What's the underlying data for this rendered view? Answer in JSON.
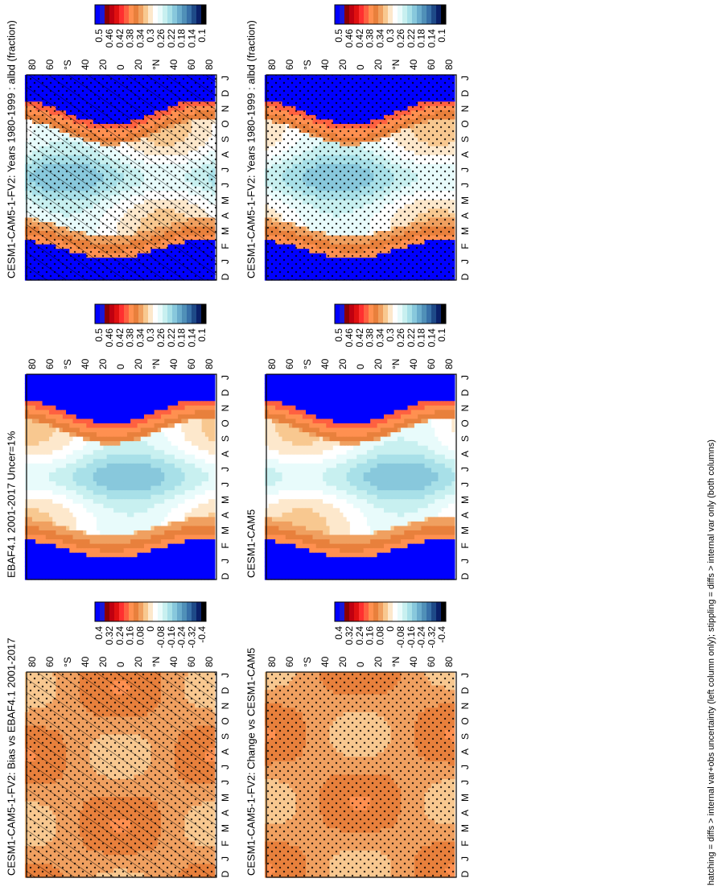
{
  "figure_note": "hatching = diffs > internal var+obs uncertainty (left column only); stippling = diffs > internal var only (both columns)",
  "palettes": {
    "absolute": [
      "#0000ff",
      "#1818d8",
      "#8b0000",
      "#c00010",
      "#e01010",
      "#ff3030",
      "#ff6040",
      "#ff9050",
      "#e8803c",
      "#f0a060",
      "#f8c890",
      "#fde8cc",
      "#ffffff",
      "#e8fbfb",
      "#c8f0f0",
      "#a8e0e8",
      "#88c8dc",
      "#6aaccc",
      "#5090b8",
      "#3870a8",
      "#1e4a88",
      "#0a2068",
      "#000000"
    ],
    "difference": [
      "#0000ff",
      "#1818d8",
      "#8b0000",
      "#c00010",
      "#e01010",
      "#ff3030",
      "#ff6040",
      "#ff9050",
      "#e8803c",
      "#f0a060",
      "#f8c890",
      "#fde8cc",
      "#ffffff",
      "#e8fbfb",
      "#c8f0f0",
      "#a8e0e8",
      "#88c8dc",
      "#6aaccc",
      "#5090b8",
      "#3870a8",
      "#1e4a88",
      "#0a2068",
      "#000000"
    ]
  },
  "panels": [
    {
      "id": "left-top",
      "title": "CESM1-CAM5-1-FV2: Years 1980-1999 : albd (fraction)",
      "kind": "absolute",
      "hatch": true,
      "stipple": true
    },
    {
      "id": "right-top",
      "title": "CESM1-CAM5-1-FV2: Years 1980-1999 : albd (fraction)",
      "kind": "absolute",
      "hatch": false,
      "stipple": true
    },
    {
      "id": "left-mid",
      "title": "EBAF4.1 2001-2017 Uncer=1%",
      "kind": "absolute",
      "hatch": false,
      "stipple": false
    },
    {
      "id": "right-mid",
      "title": "CESM1-CAM5",
      "kind": "absolute",
      "hatch": false,
      "stipple": false
    },
    {
      "id": "left-bot",
      "title": "CESM1-CAM5-1-FV2: Bias vs EBAF4.1 2001-2017",
      "kind": "difference",
      "hatch": true,
      "stipple": true
    },
    {
      "id": "right-bot",
      "title": "CESM1-CAM5-1-FV2: Change vs CESM1-CAM5",
      "kind": "difference",
      "hatch": false,
      "stipple": true
    }
  ],
  "colorbars": {
    "absolute": {
      "labels": [
        "0.5",
        "0.46",
        "0.42",
        "0.38",
        "0.34",
        "0.3",
        "0.26",
        "0.22",
        "0.18",
        "0.14",
        "0.1"
      ]
    },
    "difference": {
      "labels": [
        "0.4",
        "0.32",
        "0.24",
        "0.16",
        "0.08",
        "0",
        "-0.08",
        "-0.16",
        "-0.24",
        "-0.32",
        "-0.4"
      ]
    }
  },
  "axes": {
    "lat_labels": [
      "80",
      "60",
      "40",
      "°N",
      "20",
      "0",
      "20",
      "40",
      "°S",
      "60",
      "80"
    ],
    "month_labels": [
      "D",
      "J",
      "F",
      "M",
      "A",
      "M",
      "J",
      "J",
      "A",
      "S",
      "O",
      "N",
      "D",
      "J"
    ]
  },
  "chart_data": [
    {
      "type": "heatmap",
      "title": "CESM1-CAM5-1-FV2: Years 1980-1999 : albd (fraction)",
      "variable": "albd",
      "xlabel": "",
      "ylabel": "",
      "x": [
        "D",
        "J",
        "F",
        "M",
        "A",
        "M",
        "J",
        "J",
        "A",
        "S",
        "O",
        "N",
        "D",
        "J"
      ],
      "y": [
        "80",
        "60",
        "40",
        "20",
        "0",
        "20",
        "40",
        "60",
        "80"
      ],
      "colorbar_range": [
        0.1,
        0.5
      ]
    },
    {
      "type": "heatmap",
      "title": "CESM1-CAM5-1-FV2: Years 1980-1999 : albd (fraction)",
      "variable": "albd",
      "x": [
        "D",
        "J",
        "F",
        "M",
        "A",
        "M",
        "J",
        "J",
        "A",
        "S",
        "O",
        "N",
        "D",
        "J"
      ],
      "y": [
        "80",
        "60",
        "40",
        "20",
        "0",
        "20",
        "40",
        "60",
        "80"
      ],
      "colorbar_range": [
        0.1,
        0.5
      ]
    },
    {
      "type": "heatmap",
      "title": "EBAF4.1 2001-2017 Uncer=1%",
      "variable": "albd",
      "x": [
        "D",
        "J",
        "F",
        "M",
        "A",
        "M",
        "J",
        "J",
        "A",
        "S",
        "O",
        "N",
        "D",
        "J"
      ],
      "y": [
        "80",
        "60",
        "40",
        "20",
        "0",
        "20",
        "40",
        "60",
        "80"
      ],
      "colorbar_range": [
        0.1,
        0.5
      ]
    },
    {
      "type": "heatmap",
      "title": "CESM1-CAM5",
      "variable": "albd",
      "x": [
        "D",
        "J",
        "F",
        "M",
        "A",
        "M",
        "J",
        "J",
        "A",
        "S",
        "O",
        "N",
        "D",
        "J"
      ],
      "y": [
        "80",
        "60",
        "40",
        "20",
        "0",
        "20",
        "40",
        "60",
        "80"
      ],
      "colorbar_range": [
        0.1,
        0.5
      ]
    },
    {
      "type": "heatmap",
      "title": "CESM1-CAM5-1-FV2: Bias vs EBAF4.1 2001-2017",
      "variable": "albd",
      "x": [
        "D",
        "J",
        "F",
        "M",
        "A",
        "M",
        "J",
        "J",
        "A",
        "S",
        "O",
        "N",
        "D",
        "J"
      ],
      "y": [
        "80",
        "60",
        "40",
        "20",
        "0",
        "20",
        "40",
        "60",
        "80"
      ],
      "colorbar_range": [
        -0.4,
        0.4
      ]
    },
    {
      "type": "heatmap",
      "title": "CESM1-CAM5-1-FV2: Change vs CESM1-CAM5",
      "variable": "albd",
      "x": [
        "D",
        "J",
        "F",
        "M",
        "A",
        "M",
        "J",
        "J",
        "A",
        "S",
        "O",
        "N",
        "D",
        "J"
      ],
      "y": [
        "80",
        "60",
        "40",
        "20",
        "0",
        "20",
        "40",
        "60",
        "80"
      ],
      "colorbar_range": [
        -0.4,
        0.4
      ]
    }
  ]
}
